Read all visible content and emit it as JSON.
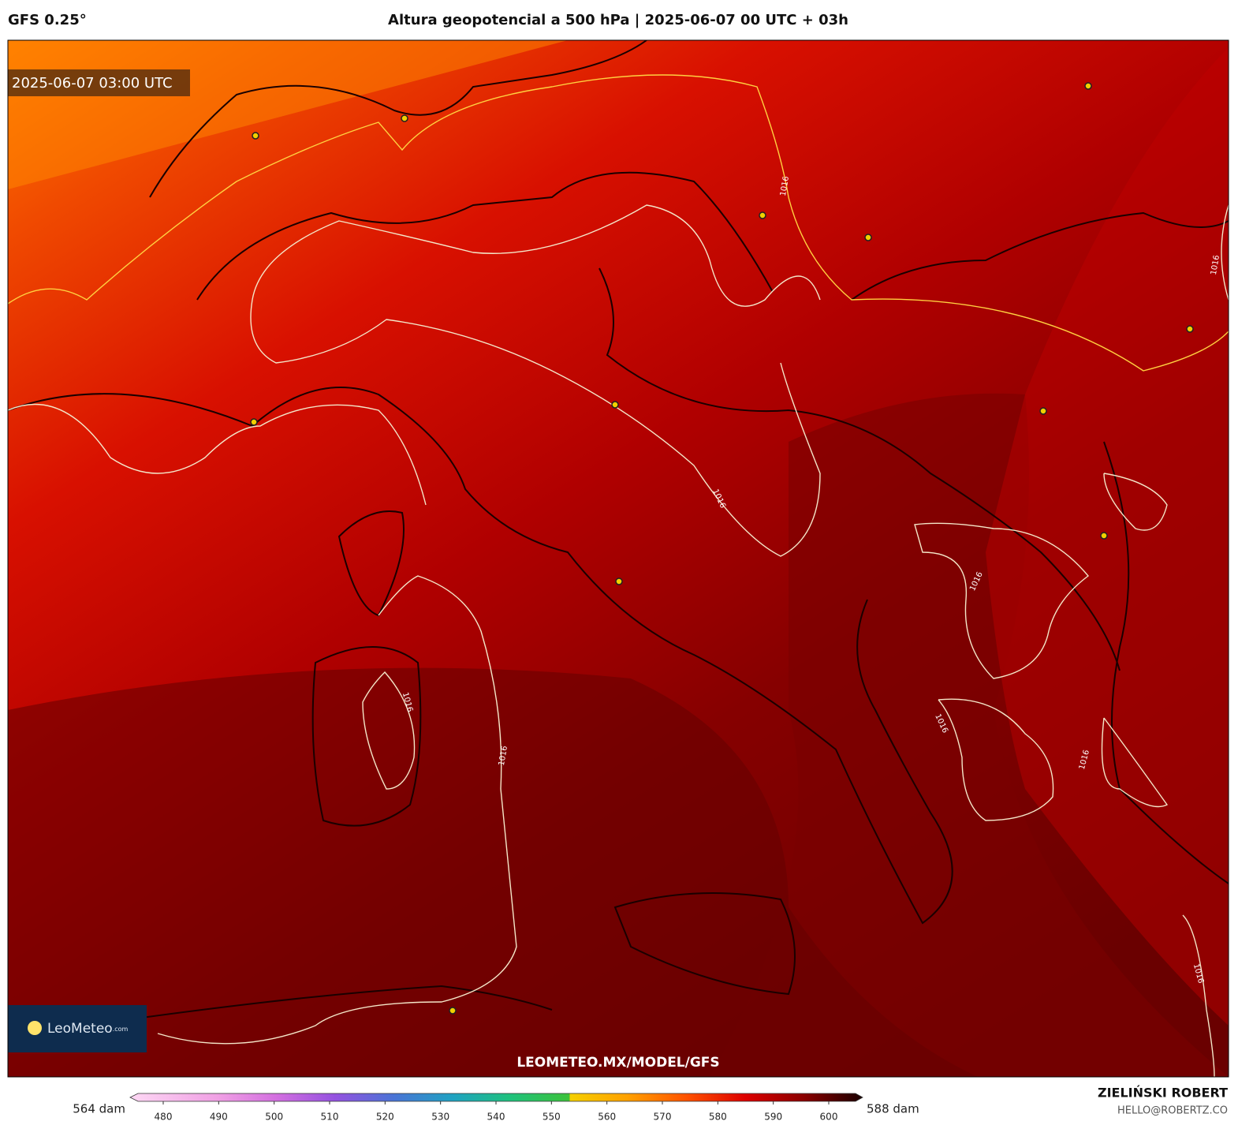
{
  "header": {
    "model": "GFS 0.25°",
    "title": "Altura geopotencial a 500 hPa | 2025-06-07 00 UTC + 03h"
  },
  "map": {
    "valid_time": "2025-06-07 03:00 UTC",
    "watermark": "LEOMETEO.MX/MODEL/GFS",
    "logo": {
      "name": "LeoMeteo",
      "suffix": ".com"
    },
    "contour_labels": [
      "1016",
      "1016",
      "1016",
      "1016",
      "1016",
      "1016",
      "1016",
      "1016",
      "1016"
    ]
  },
  "colorbar": {
    "min_label": "564 dam",
    "max_label": "588 dam",
    "ticks": [
      480,
      490,
      500,
      510,
      520,
      530,
      540,
      550,
      560,
      570,
      580,
      590,
      600
    ]
  },
  "credit": {
    "author": "ZIELIŃSKI ROBERT",
    "email": "HELLO@ROBERTZ.CO"
  }
}
